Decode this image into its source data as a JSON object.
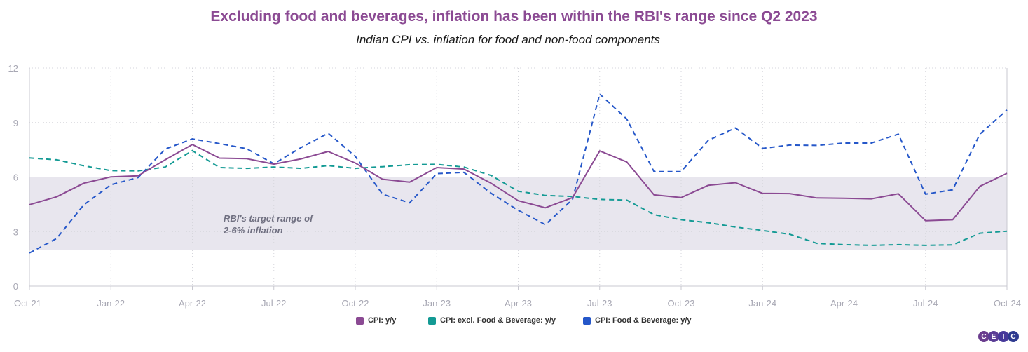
{
  "title": "Excluding food and beverages, inflation has been within the RBI's range since Q2 2023",
  "subtitle": "Indian CPI vs. inflation for food and non-food components",
  "logo": {
    "text": [
      "C",
      "E",
      "I",
      "C"
    ],
    "colors": [
      "#6a3d8e",
      "#5a3d95",
      "#46399a",
      "#2e3a8f"
    ]
  },
  "chart_data": {
    "type": "line",
    "title": "Excluding food and beverages, inflation has been within the RBI's range since Q2 2023",
    "subtitle": "Indian CPI vs. inflation for food and non-food components",
    "ylim": [
      0,
      12
    ],
    "yticks": [
      0,
      3,
      6,
      9,
      12
    ],
    "grid": true,
    "legend_position": "bottom-center",
    "x": [
      "Oct-21",
      "Nov-21",
      "Dec-21",
      "Jan-22",
      "Feb-22",
      "Mar-22",
      "Apr-22",
      "May-22",
      "Jun-22",
      "Jul-22",
      "Aug-22",
      "Sep-22",
      "Oct-22",
      "Nov-22",
      "Dec-22",
      "Jan-23",
      "Feb-23",
      "Mar-23",
      "Apr-23",
      "May-23",
      "Jun-23",
      "Jul-23",
      "Aug-23",
      "Sep-23",
      "Oct-23",
      "Nov-23",
      "Dec-23",
      "Jan-24",
      "Feb-24",
      "Mar-24",
      "Apr-24",
      "May-24",
      "Jun-24",
      "Jul-24",
      "Aug-24",
      "Sep-24",
      "Oct-24"
    ],
    "x_tick_labels": [
      "Oct-21",
      "Jan-22",
      "Apr-22",
      "Jul-22",
      "Oct-22",
      "Jan-23",
      "Apr-23",
      "Jul-23",
      "Oct-23",
      "Jan-24",
      "Apr-24",
      "Jul-24",
      "Oct-24"
    ],
    "target_band": {
      "low": 2,
      "high": 6,
      "label_line1": "RBI's target range of",
      "label_line2": "2-6% inflation",
      "color": "#e8e6ee"
    },
    "series": [
      {
        "name": "CPI: y/y",
        "color": "#8b4a93",
        "style": "solid",
        "values": [
          4.48,
          4.91,
          5.66,
          6.01,
          6.07,
          6.95,
          7.79,
          7.04,
          7.01,
          6.71,
          7.0,
          7.41,
          6.77,
          5.88,
          5.72,
          6.52,
          6.44,
          5.66,
          4.7,
          4.31,
          4.87,
          7.44,
          6.83,
          5.02,
          4.87,
          5.55,
          5.69,
          5.1,
          5.09,
          4.85,
          4.83,
          4.8,
          5.08,
          3.6,
          3.65,
          5.49,
          6.21
        ]
      },
      {
        "name": "CPI: excl. Food & Beverage: y/y",
        "color": "#139a94",
        "style": "dashed",
        "values": [
          7.05,
          6.95,
          6.62,
          6.35,
          6.34,
          6.55,
          7.45,
          6.52,
          6.48,
          6.55,
          6.48,
          6.63,
          6.48,
          6.57,
          6.68,
          6.7,
          6.55,
          6.09,
          5.22,
          4.99,
          4.93,
          4.77,
          4.73,
          3.93,
          3.65,
          3.49,
          3.25,
          3.06,
          2.85,
          2.35,
          2.28,
          2.24,
          2.28,
          2.24,
          2.27,
          2.91,
          3.02
        ]
      },
      {
        "name": "CPI: Food & Beverage: y/y",
        "color": "#2557c9",
        "style": "dashed",
        "values": [
          1.82,
          2.62,
          4.47,
          5.58,
          5.97,
          7.54,
          8.1,
          7.84,
          7.56,
          6.73,
          7.62,
          8.41,
          7.14,
          5.06,
          4.58,
          6.19,
          6.26,
          5.11,
          4.17,
          3.38,
          4.77,
          10.57,
          9.19,
          6.3,
          6.3,
          8.02,
          8.7,
          7.58,
          7.76,
          7.74,
          7.87,
          7.87,
          8.36,
          5.06,
          5.3,
          8.36,
          9.69
        ]
      }
    ]
  }
}
